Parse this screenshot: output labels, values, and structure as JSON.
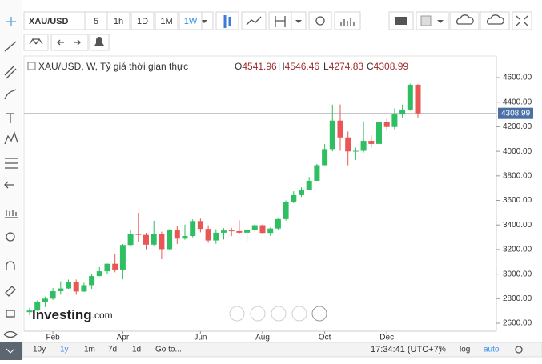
{
  "toolbar": {
    "symbol": "XAU/USD",
    "intervals": [
      "5",
      "1h",
      "1D",
      "1M",
      "1W"
    ],
    "active_interval": "1W"
  },
  "header": {
    "title": "XAU/USD, W, Tỷ giá thời gian thực",
    "ohlc": [
      {
        "key": "O",
        "value": "4541.96"
      },
      {
        "key": "H",
        "value": "4546.46"
      },
      {
        "key": "L",
        "value": "4274.83"
      },
      {
        "key": "C",
        "value": "4308.99"
      }
    ]
  },
  "logo": {
    "name": "Investing",
    "suffix": ".com"
  },
  "chart_data": {
    "type": "candlestick",
    "categories": [
      null,
      null,
      null,
      "Feb",
      null,
      null,
      null,
      null,
      null,
      null,
      null,
      null,
      "Apr",
      null,
      null,
      null,
      null,
      null,
      null,
      null,
      null,
      null,
      "Jun",
      null,
      null,
      null,
      null,
      null,
      null,
      null,
      "Aug",
      null,
      null,
      null,
      null,
      null,
      null,
      null,
      "Oct",
      null,
      null,
      null,
      null,
      null,
      null,
      null,
      "Dec",
      null,
      null,
      null,
      null
    ],
    "open": [
      2690,
      2703,
      2771,
      2800,
      2861,
      2883,
      2936,
      2858,
      2910,
      2984,
      3023,
      3084,
      3037,
      3237,
      3327,
      3319,
      3240,
      3324,
      3203,
      3357,
      3289,
      3310,
      3432,
      3368,
      3274,
      3337,
      3355,
      3350,
      3337,
      3362,
      3398,
      3335,
      3371,
      3448,
      3586,
      3643,
      3685,
      3760,
      3887,
      4018,
      4250,
      4113,
      3999,
      4004,
      4085,
      4060,
      4240,
      4198,
      4300,
      4340,
      4541.96
    ],
    "high": [
      2725,
      2786,
      2817,
      2886,
      2942,
      2955,
      2956,
      2930,
      3004,
      3057,
      3086,
      3167,
      3245,
      3357,
      3500,
      3336,
      3435,
      3345,
      3366,
      3392,
      3403,
      3446,
      3452,
      3398,
      3365,
      3374,
      3377,
      3438,
      3363,
      3409,
      3404,
      3379,
      3453,
      3600,
      3674,
      3707,
      3791,
      3897,
      4059,
      4380,
      4381,
      4161,
      4030,
      4245,
      4130,
      4250,
      4264,
      4350,
      4380,
      4550,
      4546.46
    ],
    "low": [
      2665,
      2700,
      2731,
      2790,
      2832,
      2880,
      2832,
      2856,
      2880,
      2982,
      3000,
      3015,
      2957,
      3225,
      3260,
      3202,
      3230,
      3121,
      3200,
      3245,
      3280,
      3300,
      3340,
      3255,
      3247,
      3282,
      3309,
      3324,
      3268,
      3345,
      3331,
      3311,
      3362,
      3436,
      3578,
      3628,
      3682,
      3760,
      3885,
      4000,
      4004,
      3886,
      3930,
      3990,
      4030,
      4040,
      4170,
      4180,
      4271,
      4330,
      4274.83
    ],
    "close": [
      2703,
      2771,
      2800,
      2861,
      2883,
      2936,
      2858,
      2910,
      2984,
      3023,
      3084,
      3037,
      3237,
      3327,
      3319,
      3240,
      3324,
      3203,
      3357,
      3289,
      3310,
      3432,
      3368,
      3274,
      3337,
      3355,
      3350,
      3337,
      3362,
      3398,
      3335,
      3371,
      3448,
      3586,
      3643,
      3685,
      3760,
      3887,
      4018,
      4250,
      4113,
      3999,
      4004,
      4085,
      4060,
      4240,
      4198,
      4300,
      4340,
      4541.96,
      4308.99
    ],
    "up_color": "#2fbf62",
    "down_color": "#e85656",
    "ylim": [
      2535,
      4776
    ],
    "yticks": [
      {
        "value": 2600,
        "label": "2600.00"
      },
      {
        "value": 2800,
        "label": "2800.00"
      },
      {
        "value": 3000,
        "label": "3000.00"
      },
      {
        "value": 3200,
        "label": "3200.00"
      },
      {
        "value": 3400,
        "label": "3400.00"
      },
      {
        "value": 3600,
        "label": "3600.00"
      },
      {
        "value": 3800,
        "label": "3800.00"
      },
      {
        "value": 4000,
        "label": "4000.00"
      },
      {
        "value": 4200,
        "label": "4200.00"
      },
      {
        "value": 4400,
        "label": "4400.00"
      },
      {
        "value": 4600,
        "label": "4600.00"
      }
    ],
    "price_line": {
      "value": 4308.99,
      "label": "4308.99"
    },
    "grid": false
  },
  "bottom_bar": {
    "ranges": [
      "10y",
      "1y",
      "1m",
      "7d",
      "1d"
    ],
    "goto": "Go to...",
    "time": "17:34:41 (UTC+7)",
    "options": [
      "%",
      "log",
      "auto"
    ]
  }
}
